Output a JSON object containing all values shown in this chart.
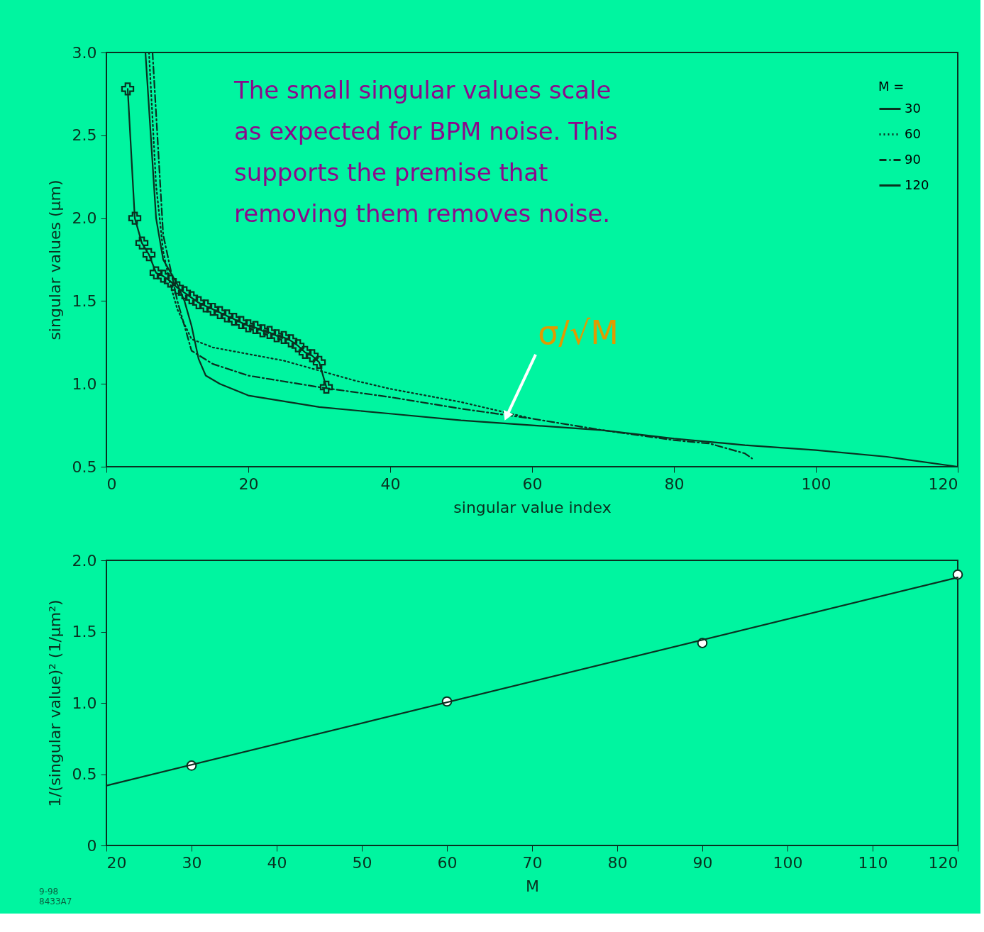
{
  "chart_data": [
    {
      "type": "line",
      "xlabel": "singular value index",
      "ylabel": "singular values  (µm)",
      "legend_title": "M =",
      "legend": "top right",
      "grid": false,
      "xlim": [
        0,
        120
      ],
      "xticks": [
        0,
        20,
        40,
        60,
        80,
        100,
        120
      ],
      "ylim": [
        0.5,
        3.0
      ],
      "yticks": [
        {
          "value": 0.5,
          "label": "0.5"
        },
        {
          "value": 1.0,
          "label": "1.0"
        },
        {
          "value": 1.5,
          "label": "1.5"
        },
        {
          "value": 2.0,
          "label": "2.0"
        },
        {
          "value": 2.5,
          "label": "2.5"
        },
        {
          "value": 3.0,
          "label": "3.0"
        }
      ],
      "series": [
        {
          "name": "30",
          "color": "#0a3020",
          "line_style": "solid",
          "marker": "cross",
          "x": [
            3,
            4,
            5,
            6,
            7,
            8,
            9,
            10,
            11,
            12,
            13,
            14,
            15,
            16,
            17,
            18,
            19,
            20,
            21,
            22,
            23,
            24,
            25,
            26,
            27,
            28,
            29,
            30,
            31
          ],
          "values": [
            2.78,
            2.0,
            1.85,
            1.78,
            1.67,
            1.65,
            1.62,
            1.58,
            1.55,
            1.52,
            1.49,
            1.47,
            1.45,
            1.43,
            1.41,
            1.39,
            1.37,
            1.35,
            1.34,
            1.32,
            1.31,
            1.29,
            1.28,
            1.26,
            1.23,
            1.19,
            1.17,
            1.13,
            0.98
          ]
        },
        {
          "name": "60",
          "color": "#0a3020",
          "line_style": "dotted",
          "marker": "none",
          "x": [
            6,
            7,
            8,
            9,
            10,
            12,
            15,
            20,
            25,
            30,
            35,
            40,
            45,
            50,
            55,
            60
          ],
          "values": [
            3.0,
            2.2,
            1.8,
            1.6,
            1.45,
            1.27,
            1.22,
            1.18,
            1.14,
            1.08,
            1.02,
            0.97,
            0.93,
            0.89,
            0.84,
            0.79
          ]
        },
        {
          "name": "90",
          "color": "#0a3020",
          "line_style": "dashdot",
          "marker": "none",
          "x": [
            6.5,
            8,
            10,
            12,
            15,
            20,
            30,
            40,
            50,
            60,
            70,
            80,
            85,
            90,
            91
          ],
          "values": [
            3.0,
            1.9,
            1.5,
            1.2,
            1.12,
            1.05,
            0.98,
            0.92,
            0.85,
            0.79,
            0.72,
            0.66,
            0.64,
            0.58,
            0.55
          ]
        },
        {
          "name": "120",
          "color": "#0a3020",
          "line_style": "solid",
          "marker": "none",
          "x": [
            5.5,
            7,
            8,
            10,
            11,
            12,
            13,
            14,
            16,
            20,
            30,
            40,
            50,
            60,
            70,
            80,
            90,
            100,
            110,
            120
          ],
          "values": [
            3.0,
            2.0,
            1.75,
            1.6,
            1.5,
            1.35,
            1.15,
            1.05,
            1.0,
            0.93,
            0.86,
            0.82,
            0.78,
            0.75,
            0.72,
            0.67,
            0.63,
            0.6,
            0.56,
            0.5
          ]
        }
      ],
      "annotations": [
        "The small singular values scale\nas expected for BPM noise.  This\nsupports the premise that\nremoving them removes noise.",
        {
          "text": "σ/√M",
          "x": 56,
          "y": 0.77
        }
      ]
    },
    {
      "type": "line",
      "xlabel": "M",
      "ylabel": "1/(singular value)² (1/µm²)",
      "grid": false,
      "xlim": [
        20,
        120
      ],
      "xticks": [
        20,
        30,
        40,
        50,
        60,
        70,
        80,
        90,
        100,
        110,
        120
      ],
      "ylim": [
        0,
        2.0
      ],
      "yticks": [
        0,
        {
          "value": 0.5,
          "label": "0.5"
        },
        {
          "value": 1.0,
          "label": "1.0"
        },
        {
          "value": 1.5,
          "label": "1.5"
        },
        {
          "value": 2.0,
          "label": "2.0"
        }
      ],
      "series": [
        {
          "type": "scatter",
          "color": "#0a3020",
          "marker": "circle",
          "x": [
            30,
            60,
            90,
            120
          ],
          "values": [
            0.56,
            1.01,
            1.42,
            1.9
          ]
        },
        {
          "type": "line",
          "color": "#0a3020",
          "line_style": "solid",
          "marker": "none",
          "x": [
            20,
            120
          ],
          "values": [
            0.42,
            1.88
          ]
        }
      ],
      "annotations": [
        "9-98",
        "8433A7"
      ]
    }
  ]
}
